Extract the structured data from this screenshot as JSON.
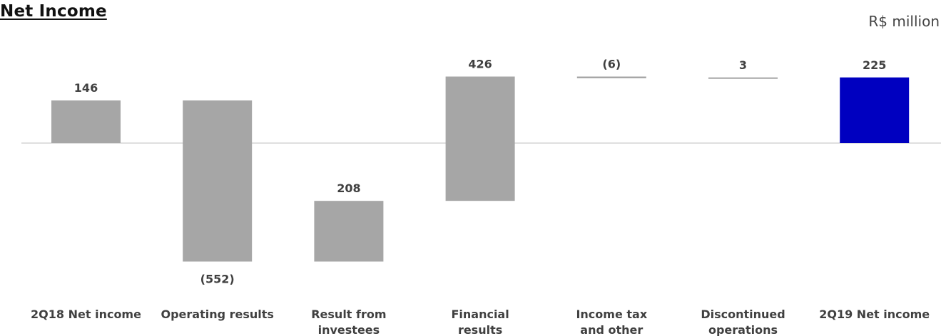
{
  "title": "Net Income",
  "unit": "R$ million",
  "colors": {
    "step": "#a6a6a6",
    "total": "#0000c0",
    "axis": "#bfbfbf",
    "text": "#404040"
  },
  "chart_data": {
    "type": "bar",
    "subtype": "waterfall",
    "title": "Net Income",
    "unit": "R$ million",
    "categories": [
      [
        "2Q18 Net income"
      ],
      [
        "Operating results"
      ],
      [
        "Result from",
        "investees"
      ],
      [
        "Financial",
        "results"
      ],
      [
        "Income tax",
        "and other"
      ],
      [
        "Discontinued",
        "operations"
      ],
      [
        "2Q19 Net income"
      ]
    ],
    "values": [
      146,
      -552,
      208,
      426,
      -6,
      3,
      225
    ],
    "value_labels": [
      "146",
      "(552)",
      "208",
      "426",
      "(6)",
      "3",
      "225"
    ],
    "kinds": [
      "total",
      "delta",
      "delta",
      "delta",
      "delta",
      "delta",
      "total"
    ],
    "grid": false,
    "legend": "none"
  }
}
